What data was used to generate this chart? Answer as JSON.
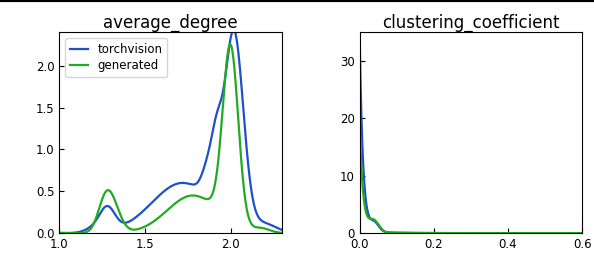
{
  "title_left": "average_degree",
  "title_right": "clustering_coefficient",
  "legend_labels": [
    "torchvision",
    "generated"
  ],
  "line_colors": [
    "#1f4fcc",
    "#22aa22"
  ],
  "line_width": 1.6,
  "left_xlim": [
    1.0,
    2.3
  ],
  "left_ylim": [
    0.0,
    2.4
  ],
  "right_xlim": [
    0.0,
    0.6
  ],
  "right_ylim": [
    0.0,
    35
  ],
  "left_xticks": [
    1.0,
    1.5,
    2.0
  ],
  "left_yticks": [
    0.0,
    0.5,
    1.0,
    1.5,
    2.0
  ],
  "right_xticks": [
    0.0,
    0.2,
    0.4,
    0.6
  ],
  "right_yticks": [
    0,
    10,
    20,
    30
  ],
  "background_color": "#ffffff",
  "title_fontsize": 12
}
